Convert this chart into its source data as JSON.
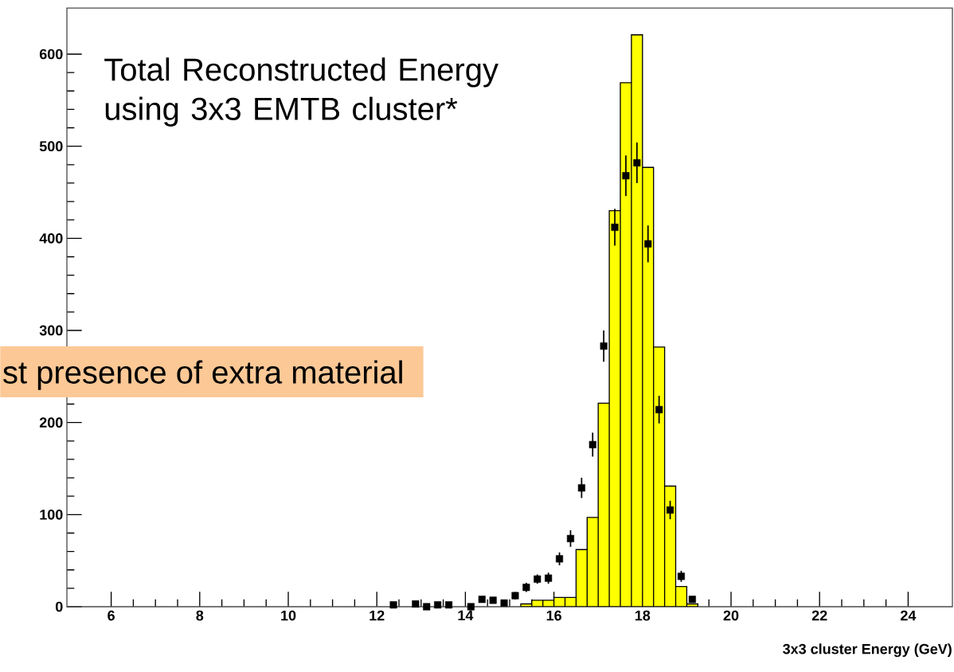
{
  "chart_data": {
    "type": "histogram",
    "annotations": [
      "Total Reconstructed Energy using 3x3 EMTB cluster*",
      "st presence of extra material"
    ],
    "xlabel": "3x3 cluster Energy (GeV)",
    "xlim": [
      5,
      25
    ],
    "ylim": [
      0,
      650
    ],
    "xticks": [
      6,
      8,
      10,
      12,
      14,
      16,
      18,
      20,
      22,
      24
    ],
    "yticks": [
      0,
      100,
      200,
      300,
      400,
      500,
      600
    ],
    "grid": false,
    "marker": "square",
    "series": [
      {
        "color": "#ffff00",
        "bins": [
          15.25,
          15.5,
          15.75,
          16.0,
          16.25,
          16.5,
          16.75,
          17.0,
          17.25,
          17.5,
          17.75,
          18.0,
          18.25,
          18.5,
          18.75,
          19.0,
          19.25
        ],
        "values": [
          3,
          7,
          7,
          10,
          10,
          62,
          97,
          221,
          430,
          569,
          621,
          477,
          282,
          131,
          22,
          3
        ]
      },
      {
        "type": "scatter",
        "color": "#000000",
        "x": [
          12.375,
          12.875,
          13.125,
          13.375,
          13.625,
          14.125,
          14.375,
          14.625,
          14.875,
          15.125,
          15.375,
          15.625,
          15.875,
          16.125,
          16.375,
          16.625,
          16.875,
          17.125,
          17.375,
          17.625,
          17.875,
          18.125,
          18.375,
          18.625,
          18.875,
          19.125
        ],
        "values": [
          2,
          3,
          0,
          2,
          2,
          0,
          8,
          7,
          4,
          12,
          21,
          30,
          31,
          52,
          74,
          129,
          176,
          283,
          412,
          468,
          482,
          394,
          214,
          105,
          33,
          8
        ],
        "errors": [
          3,
          3,
          null,
          3,
          3,
          null,
          3,
          3,
          3,
          4,
          5,
          5,
          6,
          7,
          9,
          11,
          13,
          17,
          20,
          22,
          22,
          20,
          15,
          10,
          6,
          3
        ]
      }
    ]
  }
}
